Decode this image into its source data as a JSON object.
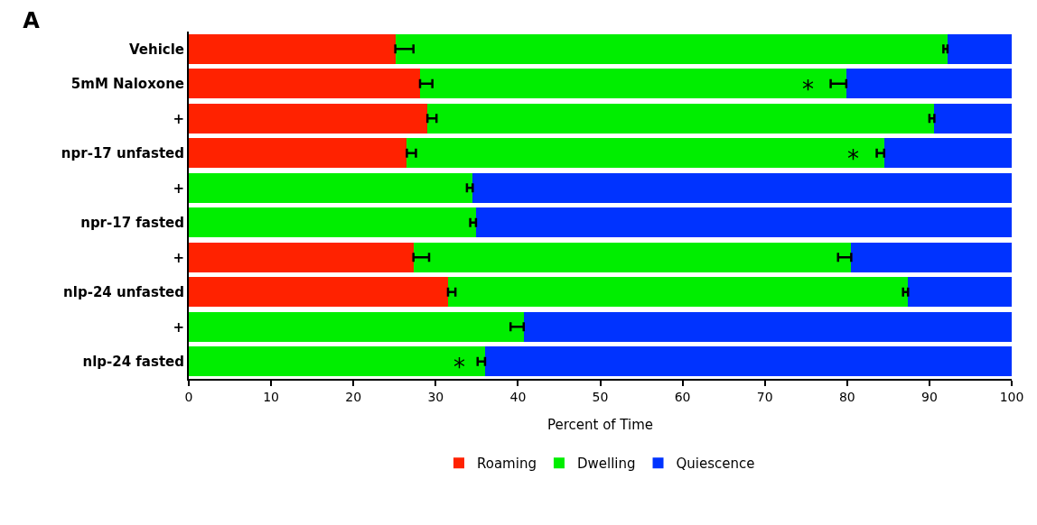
{
  "chart_data": {
    "type": "bar",
    "orientation": "horizontal",
    "stacked": true,
    "title": "A",
    "xlabel": "Percent of Time",
    "categories": [
      "Vehicle",
      "5mM Naloxone",
      "+",
      "npr-17 unfasted",
      "+",
      "npr-17 fasted",
      "+",
      "nlp-24 unfasted",
      "+",
      "nlp-24 fasted"
    ],
    "series": [
      {
        "name": "Roaming",
        "color": "#ff2200",
        "values": [
          25.1,
          28.1,
          29.0,
          26.5,
          0,
          0,
          27.3,
          31.5,
          0,
          0
        ],
        "errors": [
          [
            25.1,
            27.3
          ],
          [
            28.1,
            29.6
          ],
          [
            29.0,
            30.1
          ],
          [
            26.5,
            27.6
          ],
          null,
          null,
          [
            27.3,
            29.2
          ],
          [
            31.5,
            32.4
          ],
          null,
          null
        ]
      },
      {
        "name": "Dwelling",
        "color": "#00ee00",
        "values": [
          67.1,
          51.8,
          61.6,
          58.0,
          34.5,
          34.9,
          53.2,
          55.9,
          40.7,
          36.0
        ],
        "errors": [
          [
            91.7,
            92.2
          ],
          [
            78.0,
            79.9
          ],
          [
            90.0,
            90.6
          ],
          [
            83.6,
            84.5
          ],
          [
            33.8,
            34.5
          ],
          [
            34.2,
            34.9
          ],
          [
            78.9,
            80.5
          ],
          [
            86.8,
            87.4
          ],
          [
            39.1,
            40.7
          ],
          [
            35.1,
            36.0
          ]
        ]
      },
      {
        "name": "Quiescence",
        "color": "#0033ff",
        "values": [
          7.8,
          20.1,
          9.4,
          15.5,
          65.5,
          65.1,
          19.5,
          12.6,
          59.3,
          64.0
        ]
      }
    ],
    "xlim": [
      0,
      100
    ],
    "xticks": [
      0,
      10,
      20,
      30,
      40,
      50,
      60,
      70,
      80,
      90,
      100
    ],
    "grid": false,
    "legend": "bottom",
    "annotations": [
      {
        "text": "*",
        "x": 75.3,
        "y": "5mM Naloxone"
      },
      {
        "text": "*",
        "x": 80.7,
        "y": "npr-17 unfasted"
      },
      {
        "text": "*",
        "x": 32.9,
        "y": "nlp-24 fasted"
      }
    ]
  }
}
